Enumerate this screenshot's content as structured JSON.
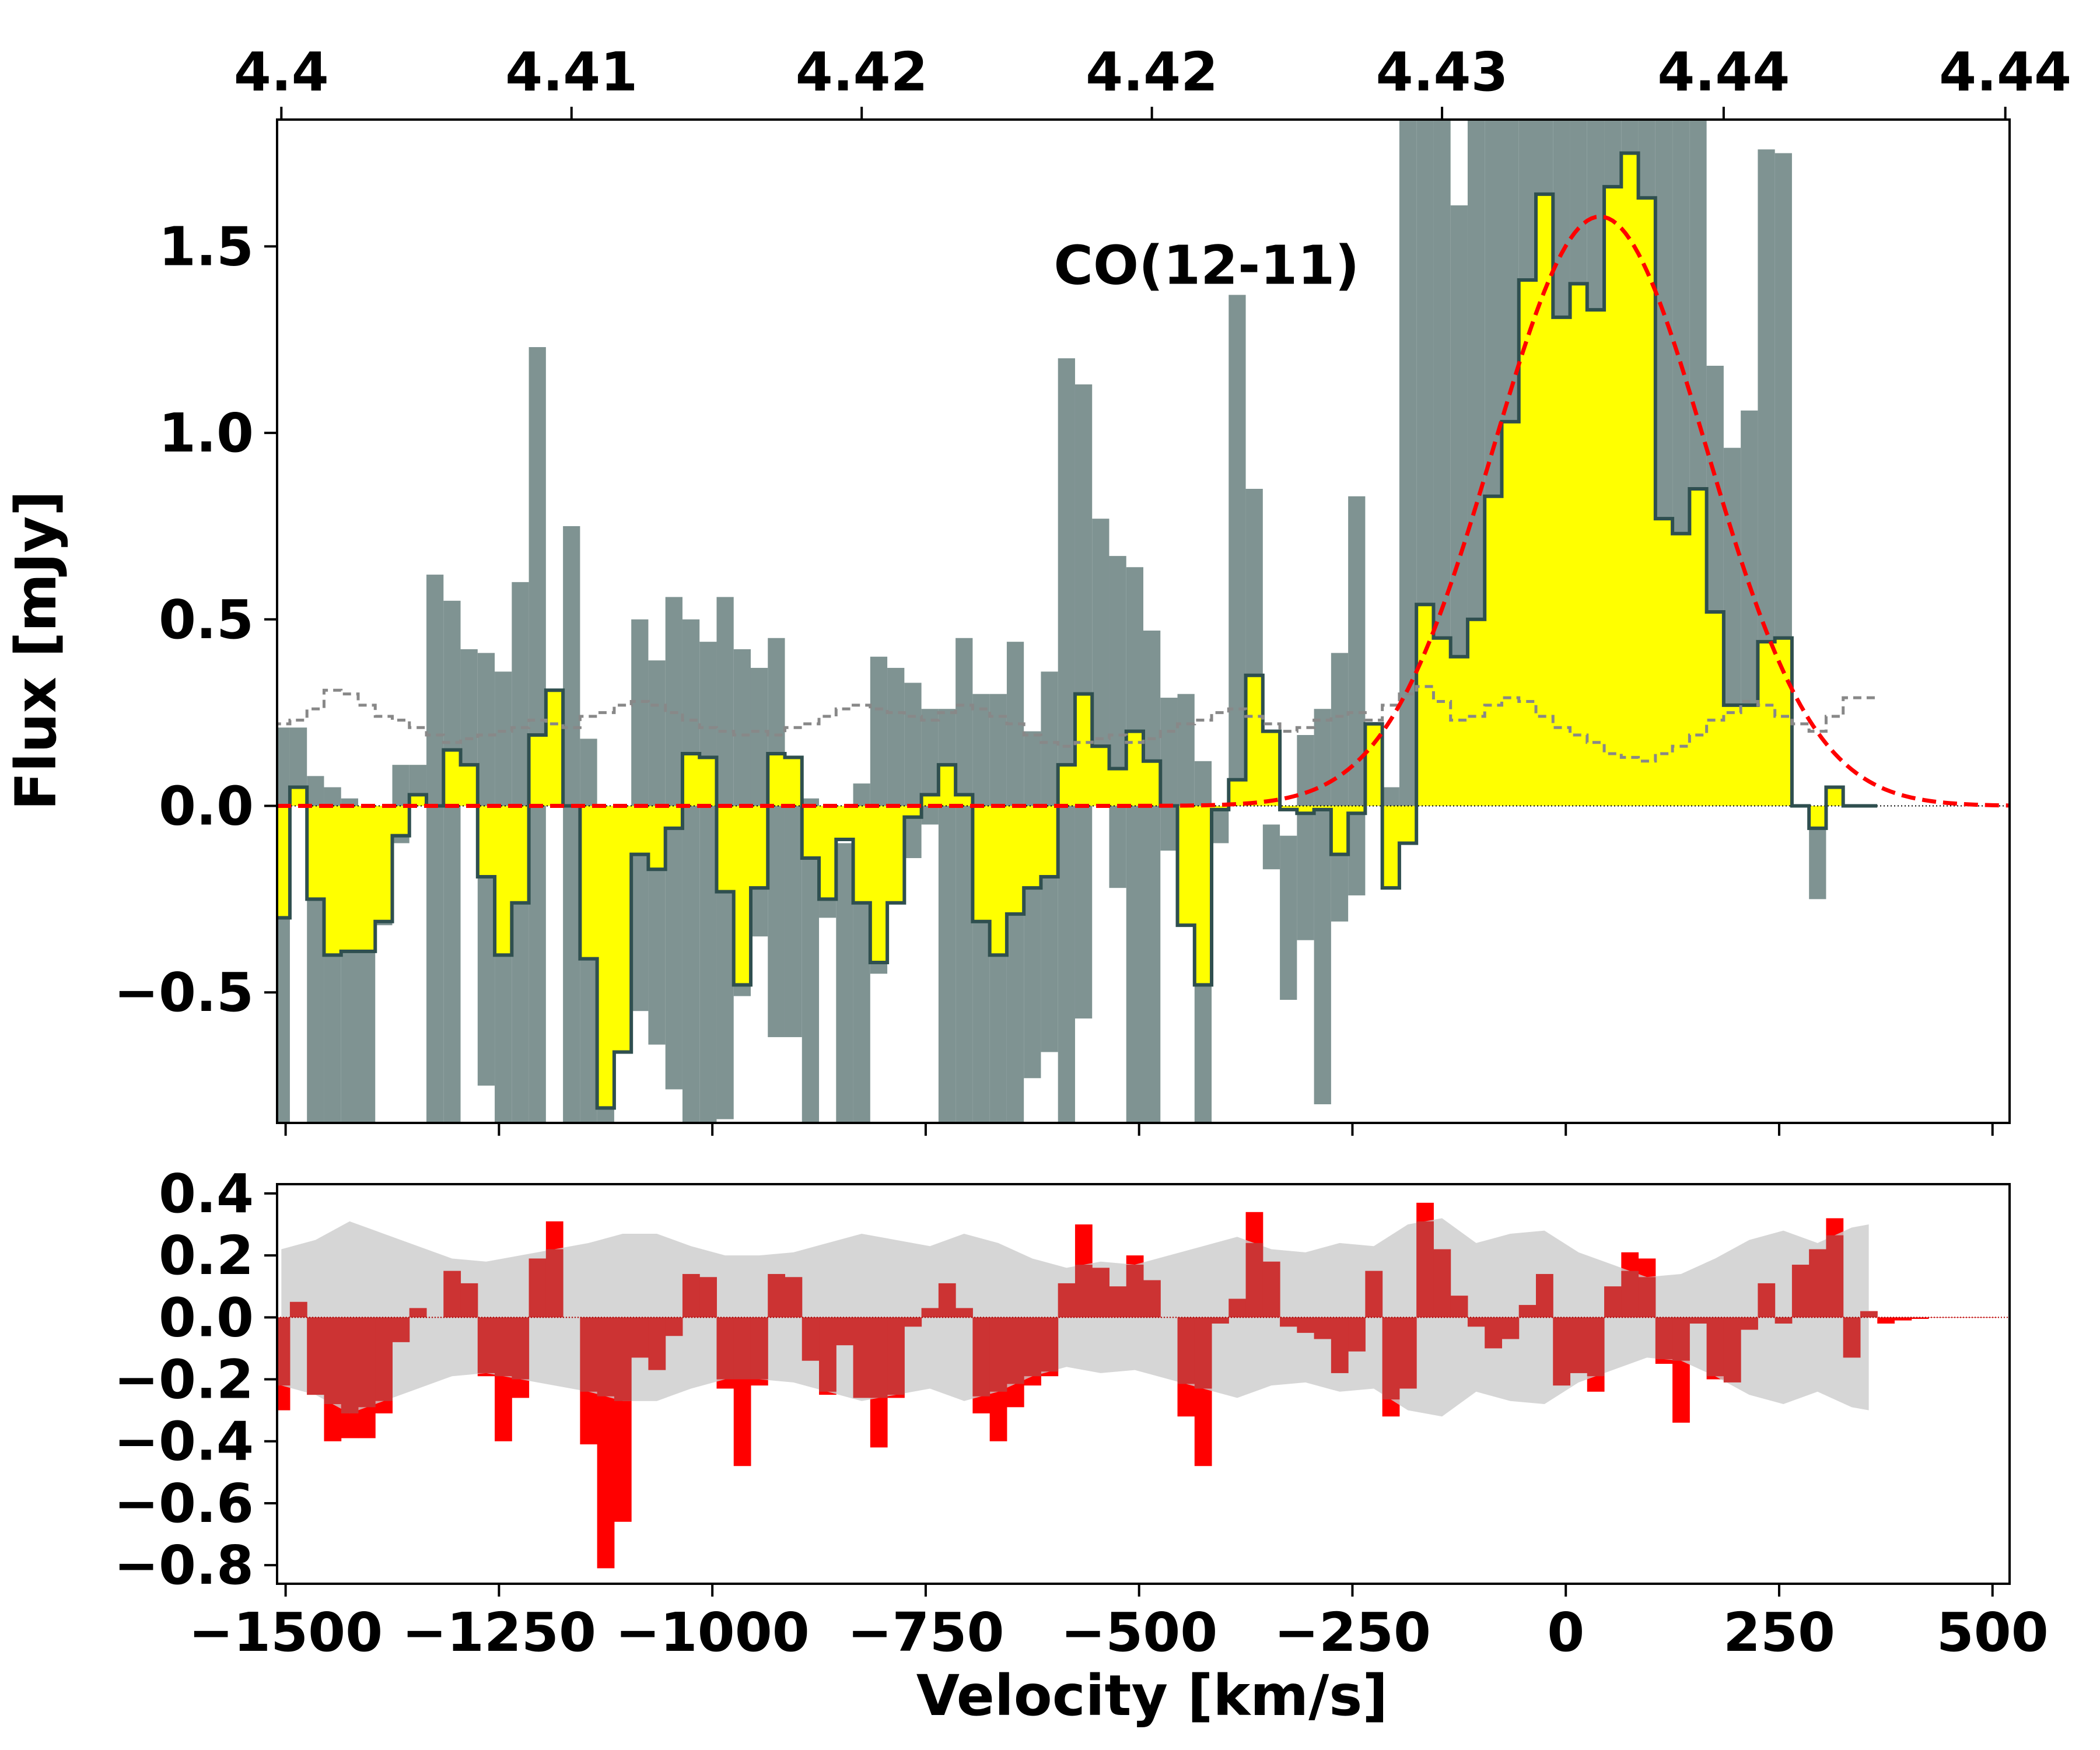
{
  "colors": {
    "spectrum_fill": "#ffff00",
    "spectrum_edge": "#2f4f4f",
    "uncertainty_band": "#7f9392",
    "noise_line": "#888888",
    "fit_line": "#ff0000",
    "residual_fill": "#ff0000",
    "residual_overlap": "#cc3333",
    "residual_band": "#cccccc"
  },
  "chart_data": [
    {
      "panel": "spectrum",
      "type": "bar",
      "xlabel": "Velocity [km/s]",
      "ylabel": "Flux [mJy]",
      "xlim": [
        -1510,
        520
      ],
      "ylim": [
        -0.85,
        1.84
      ],
      "xticks": [
        -1500,
        -1250,
        -1000,
        -750,
        -500,
        -250,
        0,
        250,
        500
      ],
      "yticks": [
        -0.5,
        0.0,
        0.5,
        1.0,
        1.5
      ],
      "ytick_labels": [
        "−0.5",
        "0.0",
        "0.5",
        "1.0",
        "1.5"
      ],
      "top_axis": {
        "tick_velocities": [
          -1505,
          -1165,
          -825,
          -485,
          -145,
          185,
          515
        ],
        "tick_labels": [
          "4.4",
          "4.41",
          "4.42",
          "4.42",
          "4.43",
          "4.44",
          "4.44"
        ]
      },
      "annotation": {
        "text": "CO(12-11)",
        "x": -600,
        "y": 1.45
      },
      "velocity_bins": [
        -1505,
        -1485,
        -1465,
        -1445,
        -1425,
        -1405,
        -1385,
        -1365,
        -1345,
        -1325,
        -1305,
        -1285,
        -1265,
        -1245,
        -1225,
        -1205,
        -1185,
        -1165,
        -1145,
        -1125,
        -1105,
        -1085,
        -1065,
        -1045,
        -1025,
        -1005,
        -985,
        -965,
        -945,
        -925,
        -905,
        -885,
        -865,
        -845,
        -825,
        -805,
        -785,
        -765,
        -745,
        -725,
        -705,
        -685,
        -665,
        -645,
        -625,
        -605,
        -585,
        -565,
        -545,
        -525,
        -505,
        -485,
        -465,
        -445,
        -425,
        -405,
        -385,
        -365,
        -345,
        -325,
        -305,
        -285,
        -265,
        -245,
        -225,
        -205,
        -185,
        -165,
        -145,
        -125,
        -105,
        -85,
        -65,
        -45,
        -25,
        -5,
        15,
        35,
        55,
        75,
        95,
        115,
        135,
        155,
        175,
        195,
        215,
        235,
        255,
        275,
        295,
        315,
        335,
        355
      ],
      "flux": [
        -0.3,
        0.05,
        -0.25,
        -0.4,
        -0.39,
        -0.39,
        -0.31,
        -0.08,
        0.03,
        0.0,
        0.15,
        0.11,
        -0.19,
        -0.4,
        -0.26,
        0.19,
        0.31,
        0.0,
        -0.41,
        -0.81,
        -0.66,
        -0.13,
        -0.17,
        -0.06,
        0.14,
        0.13,
        -0.23,
        -0.48,
        -0.22,
        0.14,
        0.13,
        -0.14,
        -0.25,
        -0.09,
        -0.26,
        -0.42,
        -0.26,
        -0.03,
        0.03,
        0.11,
        0.03,
        -0.31,
        -0.4,
        -0.29,
        -0.22,
        -0.19,
        0.11,
        0.3,
        0.16,
        0.1,
        0.2,
        0.12,
        0.0,
        -0.32,
        -0.48,
        -0.01,
        0.07,
        0.35,
        0.2,
        -0.01,
        -0.02,
        -0.01,
        -0.13,
        -0.02,
        0.22,
        -0.22,
        -0.1,
        0.54,
        0.45,
        0.4,
        0.5,
        0.83,
        1.03,
        1.41,
        1.64,
        1.31,
        1.4,
        1.33,
        1.66,
        1.75,
        1.63,
        0.77,
        0.73,
        0.85,
        0.52,
        0.27,
        0.27,
        0.44,
        0.45,
        0.0,
        -0.06,
        0.05,
        0.0,
        0.0
      ],
      "band_upper": [
        0.21,
        0.21,
        0.08,
        0.05,
        0.02,
        -0.05,
        -0.05,
        0.11,
        0.11,
        0.62,
        0.55,
        0.42,
        0.41,
        0.36,
        0.6,
        1.23,
        0.0,
        0.75,
        0.18,
        -0.05,
        -0.05,
        0.5,
        0.39,
        0.56,
        0.5,
        0.44,
        0.56,
        0.42,
        0.37,
        0.45,
        0.1,
        0.02,
        -0.12,
        -0.1,
        0.06,
        0.4,
        0.37,
        0.33,
        0.26,
        0.26,
        0.45,
        0.3,
        0.3,
        0.44,
        0.2,
        0.36,
        1.2,
        1.13,
        0.77,
        0.67,
        0.64,
        0.47,
        0.29,
        0.3,
        0.12,
        -0.1,
        1.37,
        0.85,
        -0.17,
        -0.08,
        0.19,
        0.26,
        0.41,
        0.83,
        0.0,
        0.05,
        1.84,
        1.84,
        1.84,
        1.61,
        1.84,
        1.84,
        1.84,
        1.84,
        1.84,
        1.84,
        1.84,
        1.84,
        1.84,
        1.84,
        1.84,
        1.84,
        1.84,
        1.84,
        1.18,
        0.96,
        1.06,
        1.76,
        1.75,
        0.0,
        0.0,
        0.0,
        0.0,
        0.0
      ],
      "band_lower": [
        -0.85,
        0.0,
        -0.85,
        -0.85,
        -0.85,
        -0.85,
        -0.32,
        -0.1,
        0.0,
        -0.85,
        -0.85,
        0.0,
        -0.75,
        -0.85,
        -0.85,
        -0.85,
        0.0,
        -0.85,
        -0.85,
        -0.85,
        -0.48,
        -0.55,
        -0.64,
        -0.76,
        -0.85,
        -0.85,
        -0.84,
        -0.51,
        -0.35,
        -0.62,
        -0.62,
        -0.85,
        -0.3,
        -0.85,
        -0.85,
        -0.45,
        -0.15,
        -0.14,
        -0.05,
        -0.85,
        -0.85,
        -0.85,
        -0.85,
        -0.85,
        -0.73,
        -0.66,
        -0.85,
        -0.57,
        0.0,
        -0.22,
        -0.85,
        -0.85,
        -0.12,
        -0.32,
        -0.85,
        -0.01,
        0.02,
        0.0,
        -0.05,
        -0.52,
        -0.36,
        -0.8,
        -0.31,
        -0.24,
        0.0,
        0.0,
        0.0,
        0.0,
        0.0,
        0.0,
        0.0,
        0.0,
        0.0,
        0.0,
        0.0,
        0.0,
        0.0,
        0.0,
        0.0,
        0.0,
        0.0,
        0.0,
        0.0,
        0.0,
        0.0,
        0.0,
        0.0,
        0.0,
        0.0,
        0.0,
        -0.25,
        0.0,
        0.0,
        0.0
      ],
      "noise": [
        0.22,
        0.23,
        0.26,
        0.31,
        0.3,
        0.27,
        0.24,
        0.23,
        0.21,
        0.19,
        0.17,
        0.18,
        0.19,
        0.2,
        0.21,
        0.23,
        0.22,
        0.21,
        0.24,
        0.25,
        0.27,
        0.28,
        0.27,
        0.25,
        0.23,
        0.21,
        0.2,
        0.19,
        0.2,
        0.19,
        0.21,
        0.22,
        0.24,
        0.26,
        0.27,
        0.26,
        0.25,
        0.24,
        0.23,
        0.25,
        0.27,
        0.26,
        0.24,
        0.22,
        0.19,
        0.17,
        0.16,
        0.17,
        0.18,
        0.19,
        0.17,
        0.18,
        0.2,
        0.22,
        0.23,
        0.25,
        0.26,
        0.24,
        0.22,
        0.2,
        0.21,
        0.23,
        0.24,
        0.25,
        0.23,
        0.27,
        0.3,
        0.32,
        0.28,
        0.23,
        0.24,
        0.27,
        0.29,
        0.28,
        0.24,
        0.21,
        0.19,
        0.17,
        0.14,
        0.13,
        0.12,
        0.14,
        0.16,
        0.19,
        0.23,
        0.25,
        0.28,
        0.27,
        0.24,
        0.22,
        0.2,
        0.24,
        0.29,
        0.29
      ],
      "noise_x": [
        -1505,
        -1485,
        -1465,
        -1445,
        -1425,
        -1405,
        -1385,
        -1365,
        -1345,
        -1325,
        -1305,
        -1285,
        -1265,
        -1245,
        -1225,
        -1205,
        -1185,
        -1165,
        -1145,
        -1125,
        -1105,
        -1085,
        -1065,
        -1045,
        -1025,
        -1005,
        -985,
        -965,
        -945,
        -925,
        -905,
        -885,
        -865,
        -845,
        -825,
        -805,
        -785,
        -765,
        -745,
        -725,
        -705,
        -685,
        -665,
        -645,
        -625,
        -605,
        -585,
        -565,
        -545,
        -525,
        -505,
        -485,
        -465,
        -445,
        -425,
        -405,
        -385,
        -365,
        -345,
        -325,
        -305,
        -285,
        -265,
        -245,
        -225,
        -205,
        -185,
        -165,
        -145,
        -125,
        -105,
        -85,
        -65,
        -45,
        -25,
        -5,
        15,
        35,
        55,
        75,
        95,
        115,
        135,
        155,
        175,
        195,
        215,
        235,
        255,
        275,
        295,
        315,
        335,
        355
      ],
      "fit": {
        "type": "gaussian",
        "amplitude": 1.58,
        "center": 40,
        "sigma": 125,
        "x_range": [
          -1510,
          520
        ]
      }
    },
    {
      "panel": "residuals",
      "type": "bar",
      "xlabel": "Velocity [km/s]",
      "ylabel": "",
      "xlim": [
        -1510,
        520
      ],
      "ylim": [
        -0.86,
        0.43
      ],
      "xticks": [
        -1500,
        -1250,
        -1000,
        -750,
        -500,
        -250,
        0,
        250,
        500
      ],
      "xtick_labels": [
        "−1500",
        "−1250",
        "−1000",
        "−750",
        "−500",
        "−250",
        "0",
        "250",
        "500"
      ],
      "yticks": [
        -0.8,
        -0.6,
        -0.4,
        -0.2,
        0.0,
        0.2,
        0.4
      ],
      "ytick_labels": [
        "−0.8",
        "−0.6",
        "−0.4",
        "−0.2",
        "0.0",
        "0.2",
        "0.4"
      ],
      "residual_bins": [
        -1505,
        -1485,
        -1465,
        -1445,
        -1425,
        -1405,
        -1385,
        -1365,
        -1345,
        -1325,
        -1305,
        -1285,
        -1265,
        -1245,
        -1225,
        -1205,
        -1185,
        -1165,
        -1145,
        -1125,
        -1105,
        -1085,
        -1065,
        -1045,
        -1025,
        -1005,
        -985,
        -965,
        -945,
        -925,
        -905,
        -885,
        -865,
        -845,
        -825,
        -805,
        -785,
        -765,
        -745,
        -725,
        -705,
        -685,
        -665,
        -645,
        -625,
        -605,
        -585,
        -565,
        -545,
        -525,
        -505,
        -485,
        -465,
        -445,
        -425,
        -405,
        -385,
        -365,
        -345,
        -325,
        -305,
        -285,
        -265,
        -245,
        -225,
        -205,
        -185,
        -165,
        -145,
        -125,
        -105,
        -85,
        -65,
        -45,
        -25,
        -5,
        15,
        35,
        55,
        75,
        95,
        115,
        135,
        155,
        175,
        195,
        215,
        235,
        255,
        275,
        295,
        315,
        335,
        355,
        375,
        395,
        415,
        435,
        455,
        475,
        495
      ],
      "residuals": [
        -0.3,
        0.05,
        -0.25,
        -0.4,
        -0.39,
        -0.39,
        -0.31,
        -0.08,
        0.03,
        0.0,
        0.15,
        0.11,
        -0.19,
        -0.4,
        -0.26,
        0.19,
        0.31,
        0.0,
        -0.41,
        -0.81,
        -0.66,
        -0.13,
        -0.17,
        -0.06,
        0.14,
        0.13,
        -0.23,
        -0.48,
        -0.22,
        0.14,
        0.13,
        -0.14,
        -0.25,
        -0.09,
        -0.26,
        -0.42,
        -0.26,
        -0.03,
        0.03,
        0.11,
        0.03,
        -0.31,
        -0.4,
        -0.29,
        -0.22,
        -0.19,
        0.11,
        0.3,
        0.16,
        0.1,
        0.2,
        0.12,
        0.0,
        -0.32,
        -0.48,
        -0.02,
        0.06,
        0.34,
        0.18,
        -0.03,
        -0.05,
        -0.07,
        -0.18,
        -0.11,
        0.15,
        -0.32,
        -0.23,
        0.37,
        0.22,
        0.07,
        -0.03,
        -0.1,
        -0.07,
        0.04,
        0.14,
        -0.22,
        -0.18,
        -0.24,
        0.1,
        0.21,
        0.19,
        -0.15,
        -0.34,
        -0.02,
        -0.2,
        -0.21,
        -0.04,
        0.11,
        -0.02,
        0.17,
        0.22,
        0.32,
        -0.13,
        0.02,
        -0.02,
        -0.01,
        -0.005,
        0.0,
        0.0,
        0.0,
        0.0,
        0.0
      ],
      "band_x": [
        -1505,
        -1465,
        -1425,
        -1385,
        -1345,
        -1305,
        -1265,
        -1225,
        -1185,
        -1145,
        -1105,
        -1065,
        -1025,
        -985,
        -945,
        -905,
        -865,
        -825,
        -785,
        -745,
        -705,
        -665,
        -625,
        -585,
        -545,
        -505,
        -465,
        -425,
        -385,
        -345,
        -305,
        -265,
        -225,
        -185,
        -145,
        -105,
        -65,
        -25,
        15,
        55,
        95,
        135,
        175,
        215,
        255,
        295,
        335,
        355
      ],
      "band_halfwidth": [
        0.22,
        0.25,
        0.31,
        0.27,
        0.23,
        0.19,
        0.18,
        0.2,
        0.22,
        0.24,
        0.27,
        0.27,
        0.23,
        0.2,
        0.2,
        0.21,
        0.24,
        0.27,
        0.25,
        0.23,
        0.27,
        0.24,
        0.19,
        0.16,
        0.18,
        0.17,
        0.2,
        0.23,
        0.26,
        0.22,
        0.21,
        0.24,
        0.23,
        0.3,
        0.32,
        0.24,
        0.27,
        0.28,
        0.21,
        0.17,
        0.13,
        0.14,
        0.19,
        0.25,
        0.28,
        0.24,
        0.29,
        0.3
      ]
    }
  ]
}
